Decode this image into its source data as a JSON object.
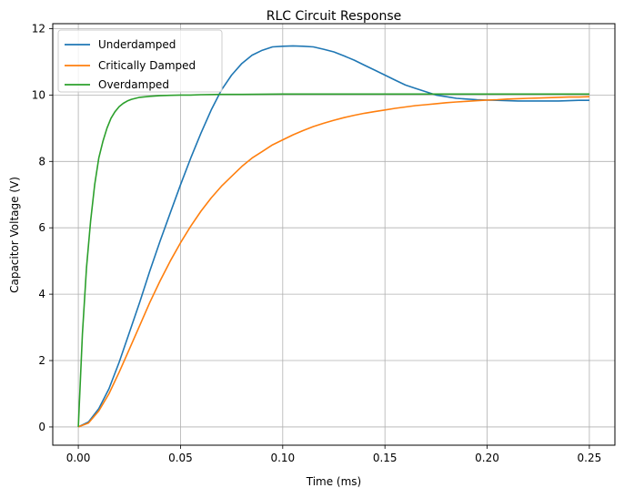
{
  "chart_data": {
    "type": "line",
    "title": "RLC Circuit Response",
    "xlabel": "Time (ms)",
    "ylabel": "Capacitor Voltage (V)",
    "xlim": [
      -0.0125,
      0.2625
    ],
    "ylim": [
      -0.55,
      12.15
    ],
    "xticks": [
      0.0,
      0.05,
      0.1,
      0.15,
      0.2,
      0.25
    ],
    "xtick_labels": [
      "0.00",
      "0.05",
      "0.10",
      "0.15",
      "0.20",
      "0.25"
    ],
    "yticks": [
      0,
      2,
      4,
      6,
      8,
      10,
      12
    ],
    "ytick_labels": [
      "0",
      "2",
      "4",
      "6",
      "8",
      "10",
      "12"
    ],
    "grid": true,
    "legend_position": "upper-left",
    "series": [
      {
        "name": "Underdamped",
        "color": "#1f77b4",
        "x": [
          0.0,
          0.005,
          0.01,
          0.015,
          0.02,
          0.025,
          0.03,
          0.035,
          0.04,
          0.045,
          0.05,
          0.055,
          0.06,
          0.065,
          0.07,
          0.075,
          0.08,
          0.085,
          0.09,
          0.095,
          0.1,
          0.105,
          0.11,
          0.115,
          0.12,
          0.125,
          0.13,
          0.135,
          0.14,
          0.145,
          0.15,
          0.155,
          0.16,
          0.165,
          0.17,
          0.175,
          0.18,
          0.185,
          0.19,
          0.195,
          0.2,
          0.205,
          0.21,
          0.215,
          0.22,
          0.225,
          0.23,
          0.235,
          0.24,
          0.245,
          0.25
        ],
        "y": [
          0.0,
          0.15,
          0.55,
          1.15,
          1.95,
          2.85,
          3.75,
          4.7,
          5.6,
          6.45,
          7.3,
          8.1,
          8.85,
          9.55,
          10.15,
          10.6,
          10.95,
          11.2,
          11.35,
          11.45,
          11.47,
          11.48,
          11.47,
          11.45,
          11.38,
          11.3,
          11.18,
          11.05,
          10.9,
          10.75,
          10.6,
          10.45,
          10.3,
          10.2,
          10.1,
          10.0,
          9.95,
          9.9,
          9.88,
          9.86,
          9.85,
          9.84,
          9.83,
          9.82,
          9.82,
          9.82,
          9.82,
          9.82,
          9.83,
          9.84,
          9.84
        ]
      },
      {
        "name": "Critically Damped",
        "color": "#ff7f0e",
        "x": [
          0.0,
          0.005,
          0.01,
          0.015,
          0.02,
          0.025,
          0.03,
          0.035,
          0.04,
          0.045,
          0.05,
          0.055,
          0.06,
          0.065,
          0.07,
          0.075,
          0.08,
          0.085,
          0.09,
          0.095,
          0.1,
          0.105,
          0.11,
          0.115,
          0.12,
          0.125,
          0.13,
          0.135,
          0.14,
          0.145,
          0.15,
          0.155,
          0.16,
          0.165,
          0.17,
          0.175,
          0.18,
          0.185,
          0.19,
          0.195,
          0.2,
          0.205,
          0.21,
          0.215,
          0.22,
          0.225,
          0.23,
          0.235,
          0.24,
          0.245,
          0.25
        ],
        "y": [
          0.0,
          0.12,
          0.48,
          1.0,
          1.65,
          2.35,
          3.05,
          3.75,
          4.4,
          5.0,
          5.55,
          6.05,
          6.5,
          6.9,
          7.25,
          7.55,
          7.85,
          8.1,
          8.3,
          8.5,
          8.65,
          8.8,
          8.93,
          9.05,
          9.15,
          9.24,
          9.32,
          9.39,
          9.45,
          9.5,
          9.55,
          9.6,
          9.64,
          9.68,
          9.71,
          9.74,
          9.77,
          9.79,
          9.81,
          9.83,
          9.85,
          9.86,
          9.88,
          9.89,
          9.9,
          9.91,
          9.92,
          9.93,
          9.94,
          9.94,
          9.95
        ]
      },
      {
        "name": "Overdamped",
        "color": "#2ca02c",
        "x": [
          0.0,
          0.002,
          0.004,
          0.006,
          0.008,
          0.01,
          0.012,
          0.014,
          0.016,
          0.018,
          0.02,
          0.022,
          0.024,
          0.026,
          0.028,
          0.03,
          0.035,
          0.04,
          0.045,
          0.05,
          0.055,
          0.06,
          0.07,
          0.08,
          0.1,
          0.12,
          0.14,
          0.16,
          0.18,
          0.2,
          0.22,
          0.25
        ],
        "y": [
          0.0,
          2.8,
          4.8,
          6.2,
          7.3,
          8.1,
          8.6,
          9.0,
          9.3,
          9.5,
          9.65,
          9.75,
          9.82,
          9.87,
          9.9,
          9.93,
          9.96,
          9.98,
          9.99,
          10.0,
          10.0,
          10.01,
          10.02,
          10.02,
          10.03,
          10.03,
          10.03,
          10.03,
          10.03,
          10.03,
          10.03,
          10.03
        ]
      }
    ]
  }
}
